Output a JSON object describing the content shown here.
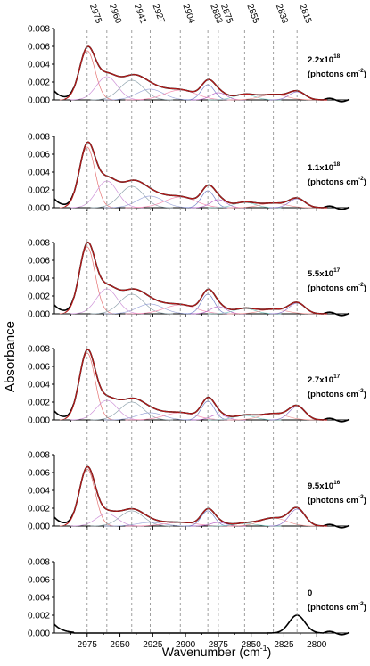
{
  "chart_data": {
    "type": "line",
    "xlabel": "Wavenumber (cm",
    "xlabel_sup": "-1",
    "xlabel_tail": ")",
    "ylabel": "Absorbance",
    "x_reversed": true,
    "xlim": [
      3000,
      2775
    ],
    "ylim": [
      0,
      0.008
    ],
    "x_ticks": [
      "2975",
      "2950",
      "2925",
      "2900",
      "2875",
      "2850",
      "2825",
      "2800"
    ],
    "x_tick_values": [
      2975,
      2950,
      2925,
      2900,
      2875,
      2850,
      2825,
      2800
    ],
    "y_ticks": [
      "0.000",
      "0.002",
      "0.004",
      "0.006",
      "0.008"
    ],
    "y_tick_values": [
      0,
      0.002,
      0.004,
      0.006,
      0.008
    ],
    "peak_labels": [
      "2975",
      "2960",
      "2941",
      "2927",
      "2904",
      "2883",
      "2875",
      "2855",
      "2833",
      "2815"
    ],
    "peak_positions": [
      2975,
      2960,
      2941,
      2927,
      2904,
      2883,
      2875,
      2855,
      2833,
      2815
    ],
    "peak_widths": [
      6,
      8,
      9,
      10,
      12,
      5,
      6,
      8,
      10,
      6
    ],
    "colors": {
      "data": "#000000",
      "fit": "#b71c1c",
      "components": [
        "#e57373",
        "#ce93d8",
        "#90a4ae",
        "#9fa8da",
        "#f48fb1",
        "#7986cb",
        "#ba68c8",
        "#80cbc4",
        "#ef9a9a",
        "#9575cd"
      ],
      "dashed": "#888888"
    },
    "panels": [
      {
        "dose": "2.2x10",
        "dose_exp": "18",
        "unit": "(photons cm",
        "unit_exp": "-2",
        "unit_tail": ")",
        "amplitudes": [
          0.0055,
          0.0026,
          0.0022,
          0.0012,
          0.0011,
          0.0017,
          0.0008,
          0.0006,
          0.0006,
          0.0009
        ]
      },
      {
        "dose": "1.1x10",
        "dose_exp": "18",
        "unit": "(photons cm",
        "unit_exp": "-2",
        "unit_tail": ")",
        "amplitudes": [
          0.0068,
          0.003,
          0.0024,
          0.0013,
          0.0012,
          0.0019,
          0.0009,
          0.0006,
          0.0005,
          0.001
        ]
      },
      {
        "dose": "5.5x10",
        "dose_exp": "17",
        "unit": "(photons cm",
        "unit_exp": "-2",
        "unit_tail": ")",
        "amplitudes": [
          0.0075,
          0.0028,
          0.0022,
          0.0011,
          0.001,
          0.0022,
          0.0008,
          0.0006,
          0.0005,
          0.0012
        ]
      },
      {
        "dose": "2.7x10",
        "dose_exp": "17",
        "unit": "(photons cm",
        "unit_exp": "-2",
        "unit_tail": ")",
        "amplitudes": [
          0.0075,
          0.0022,
          0.002,
          0.0008,
          0.0008,
          0.0021,
          0.0006,
          0.0005,
          0.0007,
          0.0015
        ]
      },
      {
        "dose": "9.5x10",
        "dose_exp": "16",
        "unit": "(photons cm",
        "unit_exp": "-2",
        "unit_tail": ")",
        "amplitudes": [
          0.0064,
          0.0014,
          0.0017,
          0.0004,
          0.0004,
          0.0017,
          0.0004,
          0.0003,
          0.0009,
          0.0019
        ]
      },
      {
        "dose": "0",
        "dose_exp": "",
        "unit": "(photons cm",
        "unit_exp": "-2",
        "unit_tail": ")",
        "amplitudes": [
          0,
          0,
          0,
          0,
          0,
          0,
          0,
          0,
          0,
          0.002
        ]
      }
    ]
  }
}
